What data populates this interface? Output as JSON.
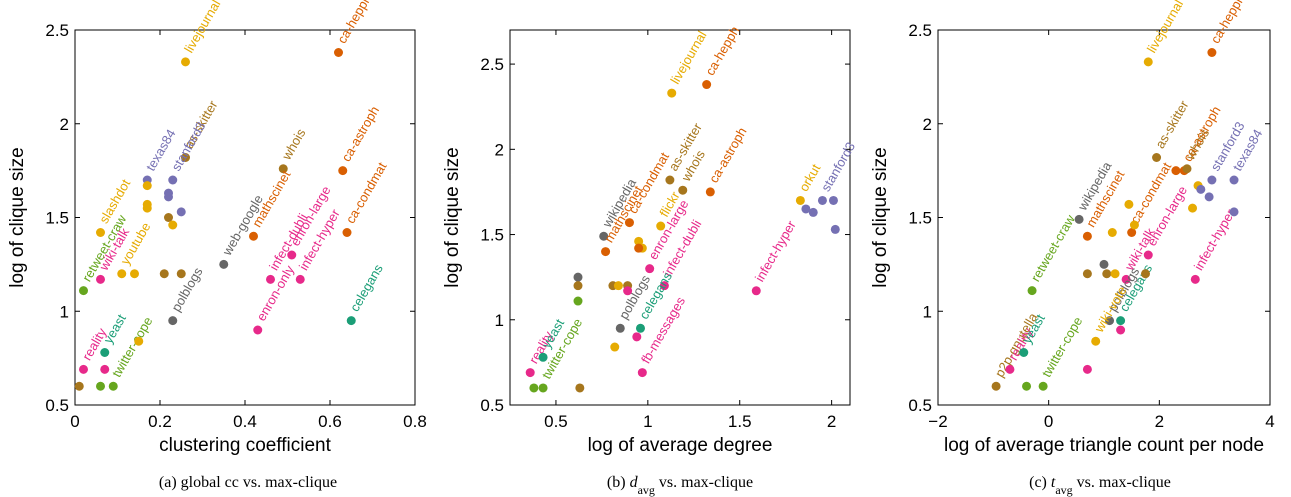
{
  "chart_data": [
    {
      "type": "scatter",
      "caption": "(a) global cc vs. max-clique",
      "xlabel": "clustering coefficient",
      "ylabel": "log of clique size",
      "xlim": [
        0,
        0.8
      ],
      "ylim": [
        0.5,
        2.5
      ],
      "xticks": [
        "0",
        "0.2",
        "0.4",
        "0.6",
        "0.8"
      ],
      "yticks": [
        "0.5",
        "1",
        "1.5",
        "2",
        "2.5"
      ],
      "points": [
        {
          "x": 0.26,
          "y": 2.33,
          "label": "livejournal",
          "color": "#e6ab02"
        },
        {
          "x": 0.62,
          "y": 2.38,
          "label": "ca-hepph",
          "color": "#d95f02"
        },
        {
          "x": 0.26,
          "y": 1.82,
          "label": "as-skitter",
          "color": "#a6761d"
        },
        {
          "x": 0.17,
          "y": 1.7,
          "label": "texas84",
          "color": "#7570b3"
        },
        {
          "x": 0.23,
          "y": 1.7,
          "label": "stanford3",
          "color": "#7570b3"
        },
        {
          "x": 0.49,
          "y": 1.76,
          "label": "whois",
          "color": "#a6761d"
        },
        {
          "x": 0.63,
          "y": 1.75,
          "label": "ca-astroph",
          "color": "#d95f02"
        },
        {
          "x": 0.06,
          "y": 1.42,
          "label": "slashdot",
          "color": "#e6ab02"
        },
        {
          "x": 0.02,
          "y": 1.11,
          "label": "retweet-craw",
          "color": "#66a61e"
        },
        {
          "x": 0.06,
          "y": 1.17,
          "label": "wiki-talk",
          "color": "#e7298a"
        },
        {
          "x": 0.11,
          "y": 1.2,
          "label": "youtube",
          "color": "#e6ab02"
        },
        {
          "x": 0.35,
          "y": 1.25,
          "label": "web-google",
          "color": "#666666"
        },
        {
          "x": 0.42,
          "y": 1.4,
          "label": "mathscinet",
          "color": "#d95f02"
        },
        {
          "x": 0.46,
          "y": 1.17,
          "label": "infect-dubli",
          "color": "#e7298a"
        },
        {
          "x": 0.51,
          "y": 1.3,
          "label": "enron-large",
          "color": "#e7298a"
        },
        {
          "x": 0.53,
          "y": 1.17,
          "label": "infect-hyper",
          "color": "#e7298a"
        },
        {
          "x": 0.64,
          "y": 1.42,
          "label": "ca-condmat",
          "color": "#d95f02"
        },
        {
          "x": 0.23,
          "y": 0.95,
          "label": "polblogs",
          "color": "#666666"
        },
        {
          "x": 0.43,
          "y": 0.9,
          "label": "enron-only",
          "color": "#e7298a"
        },
        {
          "x": 0.65,
          "y": 0.95,
          "label": "celegans",
          "color": "#1b9e77"
        },
        {
          "x": 0.02,
          "y": 0.69,
          "label": "reality",
          "color": "#e7298a"
        },
        {
          "x": 0.07,
          "y": 0.78,
          "label": "yeast",
          "color": "#1b9e77"
        },
        {
          "x": 0.09,
          "y": 0.6,
          "label": "twitter-cope",
          "color": "#66a61e"
        },
        {
          "x": 0.17,
          "y": 1.67,
          "label": "",
          "color": "#e6ab02"
        },
        {
          "x": 0.17,
          "y": 1.57,
          "label": "",
          "color": "#e6ab02"
        },
        {
          "x": 0.17,
          "y": 1.55,
          "label": "",
          "color": "#e6ab02"
        },
        {
          "x": 0.22,
          "y": 1.5,
          "label": "",
          "color": "#a6761d"
        },
        {
          "x": 0.23,
          "y": 1.46,
          "label": "",
          "color": "#e6ab02"
        },
        {
          "x": 0.25,
          "y": 1.53,
          "label": "",
          "color": "#7570b3"
        },
        {
          "x": 0.22,
          "y": 1.63,
          "label": "",
          "color": "#7570b3"
        },
        {
          "x": 0.22,
          "y": 1.61,
          "label": "",
          "color": "#7570b3"
        },
        {
          "x": 0.14,
          "y": 1.2,
          "label": "",
          "color": "#e6ab02"
        },
        {
          "x": 0.21,
          "y": 1.2,
          "label": "",
          "color": "#a6761d"
        },
        {
          "x": 0.25,
          "y": 1.2,
          "label": "",
          "color": "#a6761d"
        },
        {
          "x": 0.15,
          "y": 0.84,
          "label": "",
          "color": "#e6ab02"
        },
        {
          "x": 0.07,
          "y": 0.69,
          "label": "",
          "color": "#e7298a"
        },
        {
          "x": 0.06,
          "y": 0.6,
          "label": "",
          "color": "#66a61e"
        },
        {
          "x": 0.01,
          "y": 0.6,
          "label": "",
          "color": "#a6761d"
        }
      ]
    },
    {
      "type": "scatter",
      "caption": "(b) d_avg vs. max-clique",
      "xlabel": "log of average degree",
      "ylabel": "log of clique size",
      "xlim": [
        0.25,
        2.1
      ],
      "ylim": [
        0.5,
        2.7
      ],
      "xticks": [
        "0.5",
        "1",
        "1.5",
        "2"
      ],
      "xtick_values": [
        0.5,
        1,
        1.5,
        2
      ],
      "yticks": [
        "0.5",
        "1",
        "1.5",
        "2",
        "2.5"
      ],
      "points": [
        {
          "x": 1.13,
          "y": 2.33,
          "label": "livejournal",
          "color": "#e6ab02"
        },
        {
          "x": 1.32,
          "y": 2.38,
          "label": "ca-hepph",
          "color": "#d95f02"
        },
        {
          "x": 1.12,
          "y": 1.82,
          "label": "as-skitter",
          "color": "#a6761d"
        },
        {
          "x": 1.19,
          "y": 1.76,
          "label": "whois",
          "color": "#a6761d"
        },
        {
          "x": 1.34,
          "y": 1.75,
          "label": "ca-astroph",
          "color": "#d95f02"
        },
        {
          "x": 0.9,
          "y": 1.57,
          "label": "ca-condmat",
          "color": "#d95f02"
        },
        {
          "x": 0.76,
          "y": 1.49,
          "label": "wikipedia",
          "color": "#666666"
        },
        {
          "x": 0.77,
          "y": 1.4,
          "label": "mathscinet",
          "color": "#d95f02"
        },
        {
          "x": 1.07,
          "y": 1.55,
          "label": "flickr",
          "color": "#e6ab02"
        },
        {
          "x": 1.83,
          "y": 1.7,
          "label": "orkut",
          "color": "#e6ab02"
        },
        {
          "x": 1.95,
          "y": 1.7,
          "label": "stanford3",
          "color": "#7570b3"
        },
        {
          "x": 1.01,
          "y": 1.3,
          "label": "enron-large",
          "color": "#e7298a"
        },
        {
          "x": 1.09,
          "y": 1.2,
          "label": "infect-dubli",
          "color": "#e7298a"
        },
        {
          "x": 1.59,
          "y": 1.17,
          "label": "infect-hyper",
          "color": "#e7298a"
        },
        {
          "x": 0.85,
          "y": 0.95,
          "label": "polblogs",
          "color": "#666666"
        },
        {
          "x": 0.96,
          "y": 0.95,
          "label": "celegans",
          "color": "#1b9e77"
        },
        {
          "x": 0.36,
          "y": 0.69,
          "label": "reality",
          "color": "#e7298a"
        },
        {
          "x": 0.43,
          "y": 0.78,
          "label": "yeast",
          "color": "#1b9e77"
        },
        {
          "x": 0.97,
          "y": 0.69,
          "label": "fb-messages",
          "color": "#e7298a"
        },
        {
          "x": 0.43,
          "y": 0.6,
          "label": "twitter-cope",
          "color": "#66a61e"
        },
        {
          "x": 0.62,
          "y": 1.25,
          "label": "",
          "color": "#666666"
        },
        {
          "x": 0.62,
          "y": 1.2,
          "label": "",
          "color": "#a6761d"
        },
        {
          "x": 0.62,
          "y": 1.11,
          "label": "",
          "color": "#66a61e"
        },
        {
          "x": 0.95,
          "y": 1.46,
          "label": "",
          "color": "#e6ab02"
        },
        {
          "x": 0.97,
          "y": 1.42,
          "label": "",
          "color": "#e6ab02"
        },
        {
          "x": 0.95,
          "y": 1.42,
          "label": "",
          "color": "#d95f02"
        },
        {
          "x": 0.81,
          "y": 1.2,
          "label": "",
          "color": "#a6761d"
        },
        {
          "x": 0.84,
          "y": 1.2,
          "label": "",
          "color": "#e6ab02"
        },
        {
          "x": 0.89,
          "y": 1.2,
          "label": "",
          "color": "#a6761d"
        },
        {
          "x": 0.89,
          "y": 1.17,
          "label": "",
          "color": "#e7298a"
        },
        {
          "x": 0.94,
          "y": 0.9,
          "label": "",
          "color": "#e7298a"
        },
        {
          "x": 0.82,
          "y": 0.84,
          "label": "",
          "color": "#e6ab02"
        },
        {
          "x": 1.9,
          "y": 1.63,
          "label": "",
          "color": "#7570b3"
        },
        {
          "x": 1.86,
          "y": 1.65,
          "label": "",
          "color": "#7570b3"
        },
        {
          "x": 2.01,
          "y": 1.7,
          "label": "",
          "color": "#7570b3"
        },
        {
          "x": 2.02,
          "y": 1.53,
          "label": "",
          "color": "#7570b3"
        },
        {
          "x": 0.38,
          "y": 0.6,
          "label": "",
          "color": "#66a61e"
        },
        {
          "x": 0.63,
          "y": 0.6,
          "label": "",
          "color": "#a6761d"
        }
      ]
    },
    {
      "type": "scatter",
      "caption": "(c) t_avg vs. max-clique",
      "xlabel": "log of average triangle count per node",
      "ylabel": "log of clique size",
      "xlim": [
        -2,
        4
      ],
      "ylim": [
        0.5,
        2.5
      ],
      "xticks": [
        "−2",
        "0",
        "2",
        "4"
      ],
      "xtick_values": [
        -2,
        0,
        2,
        4
      ],
      "yticks": [
        "0.5",
        "1",
        "1.5",
        "2",
        "2.5"
      ],
      "points": [
        {
          "x": 1.8,
          "y": 2.33,
          "label": "livejournal",
          "color": "#e6ab02"
        },
        {
          "x": 2.95,
          "y": 2.38,
          "label": "ca-hepph",
          "color": "#d95f02"
        },
        {
          "x": 1.95,
          "y": 1.82,
          "label": "as-skitter",
          "color": "#a6761d"
        },
        {
          "x": 2.45,
          "y": 1.75,
          "label": "ca-astroph",
          "color": "#d95f02"
        },
        {
          "x": 2.5,
          "y": 1.76,
          "label": "whois",
          "color": "#a6761d"
        },
        {
          "x": 3.35,
          "y": 1.7,
          "label": "texas84",
          "color": "#7570b3"
        },
        {
          "x": 2.95,
          "y": 1.7,
          "label": "stanford3",
          "color": "#7570b3"
        },
        {
          "x": 1.5,
          "y": 1.42,
          "label": "ca-condmat",
          "color": "#d95f02"
        },
        {
          "x": 0.55,
          "y": 1.49,
          "label": "wikipedia",
          "color": "#666666"
        },
        {
          "x": 0.7,
          "y": 1.4,
          "label": "mathscinet",
          "color": "#d95f02"
        },
        {
          "x": 1.8,
          "y": 1.3,
          "label": "enron-large",
          "color": "#e7298a"
        },
        {
          "x": 1.4,
          "y": 1.17,
          "label": "wiki-talk",
          "color": "#e7298a"
        },
        {
          "x": 2.65,
          "y": 1.17,
          "label": "infect-hyper",
          "color": "#e7298a"
        },
        {
          "x": -0.3,
          "y": 1.11,
          "label": "retweet-craw",
          "color": "#66a61e"
        },
        {
          "x": 1.1,
          "y": 0.95,
          "label": "polblogs",
          "color": "#666666"
        },
        {
          "x": 1.3,
          "y": 0.95,
          "label": "celegans",
          "color": "#1b9e77"
        },
        {
          "x": 0.85,
          "y": 0.84,
          "label": "wiki-vote",
          "color": "#e6ab02"
        },
        {
          "x": -0.95,
          "y": 0.6,
          "label": "p2p-gnutella",
          "color": "#a6761d"
        },
        {
          "x": -0.7,
          "y": 0.69,
          "label": "reality",
          "color": "#e7298a"
        },
        {
          "x": -0.45,
          "y": 0.78,
          "label": "yeast",
          "color": "#1b9e77"
        },
        {
          "x": -0.1,
          "y": 0.6,
          "label": "twitter-cope",
          "color": "#66a61e"
        },
        {
          "x": -0.4,
          "y": 0.6,
          "label": "",
          "color": "#66a61e"
        },
        {
          "x": 0.7,
          "y": 0.69,
          "label": "",
          "color": "#e7298a"
        },
        {
          "x": 1.3,
          "y": 0.9,
          "label": "",
          "color": "#e7298a"
        },
        {
          "x": 0.7,
          "y": 1.2,
          "label": "",
          "color": "#a6761d"
        },
        {
          "x": 1.0,
          "y": 1.25,
          "label": "",
          "color": "#666666"
        },
        {
          "x": 1.05,
          "y": 1.2,
          "label": "",
          "color": "#a6761d"
        },
        {
          "x": 1.2,
          "y": 1.2,
          "label": "",
          "color": "#e6ab02"
        },
        {
          "x": 1.15,
          "y": 1.42,
          "label": "",
          "color": "#e6ab02"
        },
        {
          "x": 1.45,
          "y": 1.57,
          "label": "",
          "color": "#e6ab02"
        },
        {
          "x": 1.55,
          "y": 1.46,
          "label": "",
          "color": "#e6ab02"
        },
        {
          "x": 1.75,
          "y": 1.2,
          "label": "",
          "color": "#a6761d"
        },
        {
          "x": 2.3,
          "y": 1.75,
          "label": "",
          "color": "#d95f02"
        },
        {
          "x": 2.6,
          "y": 1.55,
          "label": "",
          "color": "#e6ab02"
        },
        {
          "x": 2.7,
          "y": 1.67,
          "label": "",
          "color": "#e6ab02"
        },
        {
          "x": 2.75,
          "y": 1.65,
          "label": "",
          "color": "#7570b3"
        },
        {
          "x": 2.9,
          "y": 1.61,
          "label": "",
          "color": "#7570b3"
        },
        {
          "x": 3.35,
          "y": 1.53,
          "label": "",
          "color": "#7570b3"
        }
      ]
    }
  ]
}
